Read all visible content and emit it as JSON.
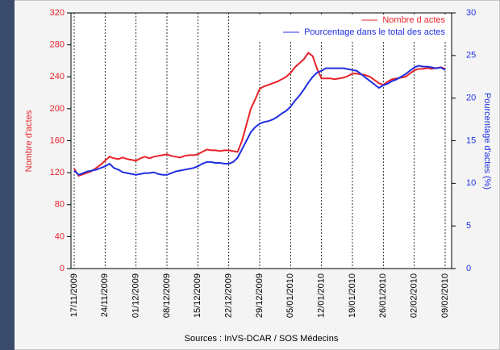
{
  "chart_data": {
    "type": "line",
    "x": [
      "17/11/2009",
      null,
      null,
      null,
      null,
      null,
      null,
      "24/11/2009",
      null,
      null,
      null,
      null,
      null,
      null,
      "01/12/2009",
      null,
      null,
      null,
      null,
      null,
      null,
      "08/12/2009",
      null,
      null,
      null,
      null,
      null,
      null,
      "15/12/2009",
      null,
      null,
      null,
      null,
      null,
      null,
      "22/12/2009",
      null,
      null,
      null,
      null,
      null,
      null,
      "29/12/2009",
      null,
      null,
      null,
      null,
      null,
      null,
      "05/01/2010",
      null,
      null,
      null,
      null,
      null,
      null,
      "12/01/2010",
      null,
      null,
      null,
      null,
      null,
      null,
      "19/01/2010",
      null,
      null,
      null,
      null,
      null,
      null,
      "26/01/2010",
      null,
      null,
      null,
      null,
      null,
      null,
      "02/02/2010",
      null,
      null,
      null,
      null,
      null,
      null,
      "09/02/2010"
    ],
    "series": [
      {
        "name": "Nombre d actes",
        "color": "#e8232a",
        "axis": "y",
        "values": [
          125,
          116,
          118,
          120,
          122,
          126,
          130,
          135,
          140,
          138,
          137,
          139,
          137,
          136,
          135,
          138,
          140,
          138,
          140,
          141,
          142,
          143,
          141,
          140,
          139,
          141,
          142,
          142,
          143,
          146,
          149,
          148,
          148,
          147,
          148,
          148,
          147,
          146,
          160,
          180,
          200,
          212,
          225,
          228,
          230,
          232,
          234,
          237,
          240,
          245,
          252,
          257,
          262,
          270,
          266,
          250,
          238,
          238,
          238,
          237,
          238,
          239,
          241,
          244,
          244,
          243,
          242,
          240,
          236,
          232,
          230,
          234,
          237,
          238,
          239,
          240,
          244,
          248,
          250,
          250,
          251,
          250,
          251,
          252,
          250
        ]
      },
      {
        "name": "Pourcentage dans le total des actes",
        "color": "#1f2fe0",
        "axis": "y2",
        "values": [
          11.5,
          11,
          11.2,
          11.4,
          11.5,
          11.6,
          11.8,
          12,
          12.3,
          11.8,
          11.6,
          11.3,
          11.2,
          11.1,
          11,
          11.1,
          11.2,
          11.2,
          11.3,
          11.1,
          11,
          11,
          11.2,
          11.4,
          11.5,
          11.6,
          11.7,
          11.8,
          12,
          12.3,
          12.5,
          12.5,
          12.4,
          12.4,
          12.3,
          12.3,
          12.5,
          13,
          14,
          15,
          16,
          16.6,
          17,
          17.2,
          17.3,
          17.5,
          17.8,
          18.2,
          18.5,
          19,
          19.7,
          20.3,
          21,
          21.8,
          22.5,
          23,
          23.2,
          23.5,
          23.5,
          23.5,
          23.5,
          23.5,
          23.4,
          23.3,
          23.2,
          22.8,
          22.4,
          22,
          21.6,
          21.2,
          21.5,
          21.7,
          22,
          22.2,
          22.5,
          22.8,
          23.2,
          23.6,
          23.8,
          23.7,
          23.7,
          23.6,
          23.5,
          23.6,
          23.3
        ]
      }
    ],
    "ylim": [
      0,
      320
    ],
    "yticks": [
      0,
      40,
      80,
      120,
      160,
      200,
      240,
      280,
      320
    ],
    "y2lim": [
      0,
      30
    ],
    "y2ticks": [
      0,
      5,
      10,
      15,
      20,
      25,
      30
    ],
    "ylabel": "Nombre d'actes",
    "y2label": "Pourcentage d'actes (%)",
    "source": "Sources : InVS-DCAR / SOS Médecins",
    "legend": "upper right",
    "grid": true
  }
}
